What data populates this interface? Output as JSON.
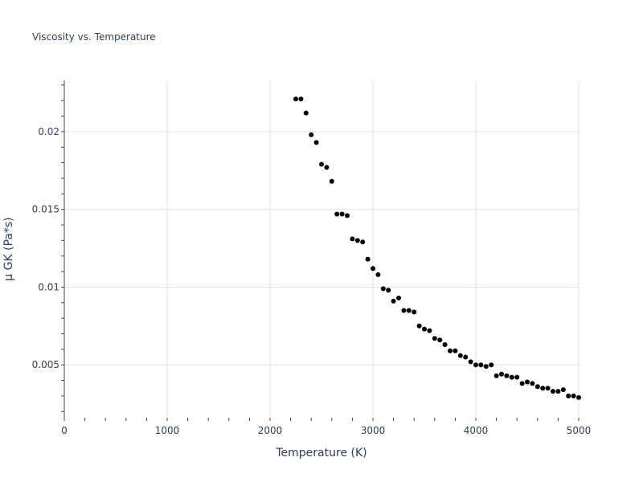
{
  "chart_data": {
    "type": "scatter",
    "title": "Viscosity vs. Temperature",
    "xlabel": "Temperature (K)",
    "ylabel": "μ GK (Pa*s)",
    "xlim": [
      0,
      5000
    ],
    "ylim": [
      0.0016,
      0.0233
    ],
    "x_ticks": [
      0,
      1000,
      2000,
      3000,
      4000,
      5000
    ],
    "x_tick_labels": [
      "0",
      "1000",
      "2000",
      "3000",
      "4000",
      "5000"
    ],
    "y_ticks": [
      0.005,
      0.01,
      0.015,
      0.02
    ],
    "y_tick_labels": [
      "0.005",
      "0.01",
      "0.015",
      "0.02"
    ],
    "grid": true,
    "marker_color": "#000000",
    "series": [
      {
        "x": [
          2250,
          2300,
          2350,
          2400,
          2450,
          2500,
          2550,
          2600,
          2650,
          2700,
          2750,
          2800,
          2850,
          2900,
          2950,
          3000,
          3050,
          3100,
          3150,
          3200,
          3250,
          3300,
          3350,
          3400,
          3450,
          3500,
          3550,
          3600,
          3650,
          3700,
          3750,
          3800,
          3850,
          3900,
          3950,
          4000,
          4050,
          4100,
          4150,
          4200,
          4250,
          4300,
          4350,
          4400,
          4450,
          4500,
          4550,
          4600,
          4650,
          4700,
          4750,
          4800,
          4850,
          4900,
          4950,
          5000
        ],
        "y": [
          0.0221,
          0.0221,
          0.0212,
          0.0198,
          0.0193,
          0.0179,
          0.0177,
          0.0168,
          0.0147,
          0.0147,
          0.0146,
          0.0131,
          0.013,
          0.0129,
          0.0118,
          0.0112,
          0.0108,
          0.0099,
          0.0098,
          0.0091,
          0.0093,
          0.0085,
          0.0085,
          0.0084,
          0.0075,
          0.0073,
          0.0072,
          0.0067,
          0.0066,
          0.0063,
          0.0059,
          0.0059,
          0.0056,
          0.0055,
          0.0052,
          0.005,
          0.005,
          0.0049,
          0.005,
          0.0043,
          0.0044,
          0.0043,
          0.0042,
          0.0042,
          0.0038,
          0.0039,
          0.0038,
          0.0036,
          0.0035,
          0.0035,
          0.0033,
          0.0033,
          0.0034,
          0.003,
          0.003,
          0.0029
        ]
      }
    ]
  }
}
